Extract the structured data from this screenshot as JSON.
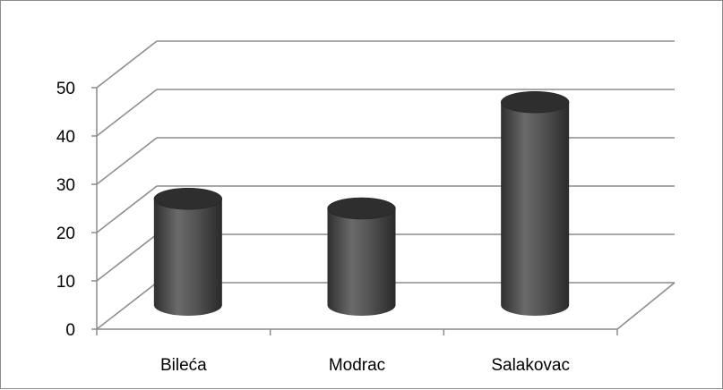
{
  "chart_data": {
    "type": "bar",
    "style": "3d-cylinder",
    "categories": [
      "Bileća",
      "Modrac",
      "Salakovac"
    ],
    "series": [
      {
        "values": [
          22,
          20,
          42
        ]
      }
    ],
    "yticks": [
      "0",
      "10",
      "20",
      "30",
      "40",
      "50"
    ],
    "ylim": [
      0,
      50
    ],
    "grid": true,
    "legend": "none",
    "title": "",
    "xlabel": "",
    "ylabel": "",
    "colors": {
      "bar": "#4a4a4a",
      "bar_top": "#2e2e2e",
      "grid": "#8c8c8c",
      "axis": "#8c8c8c"
    }
  }
}
